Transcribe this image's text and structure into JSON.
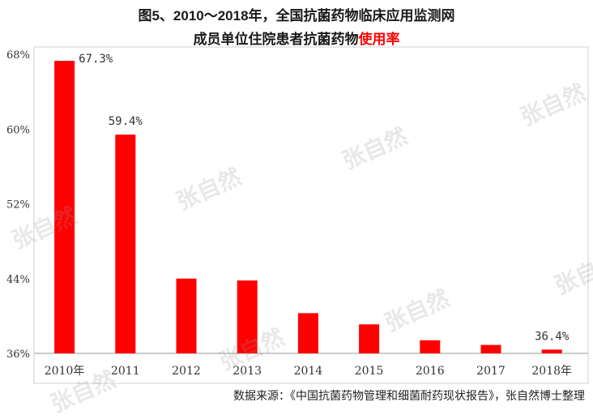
{
  "title": {
    "line1": "图5、2010～2018年，全国抗菌药物临床应用监测网",
    "line2_main": "成员单位住院患者抗菌药物",
    "line2_highlight": "使用率"
  },
  "source": "数据来源：《中国抗菌药物管理和细菌耐药现状报告》，张自然博士整理",
  "watermark": "张自然",
  "colors": {
    "bar": "#ff0000",
    "highlight": "#ff0000",
    "text": "#1a1a1a"
  },
  "chart_data": {
    "type": "bar",
    "categories": [
      "2010年",
      "2011",
      "2012",
      "2013",
      "2014",
      "2015",
      "2016",
      "2017",
      "2018年"
    ],
    "values": [
      67.3,
      59.4,
      44.0,
      43.8,
      40.3,
      39.1,
      37.4,
      36.9,
      36.4
    ],
    "data_labels": [
      "67.3%",
      "59.4%",
      "",
      "",
      "",
      "",
      "",
      "",
      "36.4%"
    ],
    "yticks": [
      "36%",
      "44%",
      "52%",
      "60%",
      "68%"
    ],
    "ytick_values": [
      36,
      44,
      52,
      60,
      68
    ],
    "ylim": [
      36,
      68
    ],
    "grid": false,
    "legend": "none"
  }
}
